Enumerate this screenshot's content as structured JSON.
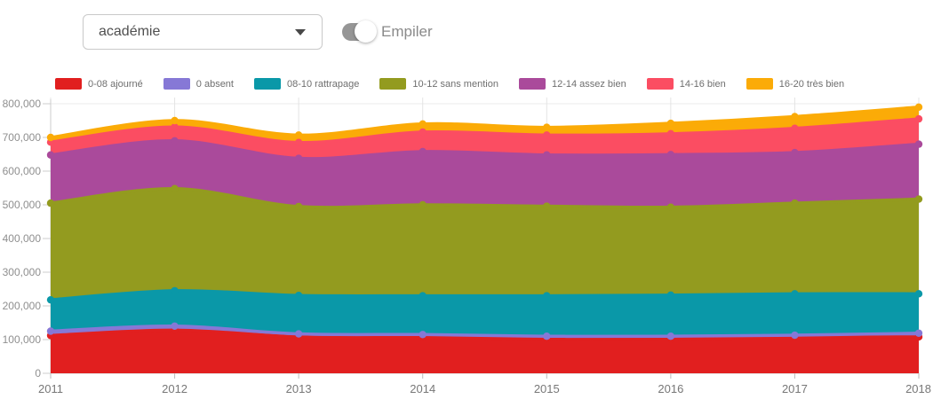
{
  "header": {
    "dropdown": {
      "value": "académie"
    },
    "toggle": {
      "label": "Empiler",
      "on": true
    }
  },
  "chart_data": {
    "type": "area",
    "stacked": true,
    "title": "",
    "xlabel": "",
    "ylabel": "",
    "x": [
      2011,
      2012,
      2013,
      2014,
      2015,
      2016,
      2017,
      2018
    ],
    "xtick_labels": [
      "2011",
      "2012",
      "2013",
      "2014",
      "2015",
      "2016",
      "2017",
      "2018"
    ],
    "ylim": [
      0,
      800000
    ],
    "ytick_step": 100000,
    "ytick_labels": [
      "0",
      "100,000",
      "200,000",
      "300,000",
      "400,000",
      "500,000",
      "600,000",
      "700,000",
      "800,000"
    ],
    "grid": true,
    "legend_position": "top",
    "series": [
      {
        "name": "0-08 ajourné",
        "color": "#e11f1f",
        "values": [
          112000,
          128000,
          108000,
          107000,
          102000,
          102000,
          107000,
          108000
        ]
      },
      {
        "name": "0 absent",
        "color": "#8678d6",
        "values": [
          13000,
          12000,
          9000,
          8000,
          8000,
          8000,
          6000,
          11000
        ]
      },
      {
        "name": "08-10 rattrapage",
        "color": "#0a98a8",
        "values": [
          93000,
          105000,
          114000,
          115000,
          120000,
          122000,
          123000,
          117000
        ]
      },
      {
        "name": "10-12 sans mention",
        "color": "#939b1f",
        "values": [
          287000,
          303000,
          264000,
          270000,
          266000,
          261000,
          269000,
          281000
        ]
      },
      {
        "name": "12-14 assez bien",
        "color": "#aa4a9b",
        "values": [
          143000,
          142000,
          143000,
          158000,
          152000,
          156000,
          150000,
          163000
        ]
      },
      {
        "name": "14-16 bien",
        "color": "#fb4d62",
        "values": [
          38000,
          41000,
          47000,
          58000,
          59000,
          62000,
          72000,
          75000
        ]
      },
      {
        "name": "16-20 très bien",
        "color": "#fbab07",
        "values": [
          14000,
          19000,
          22000,
          24000,
          23000,
          31000,
          35000,
          35000
        ]
      }
    ]
  }
}
